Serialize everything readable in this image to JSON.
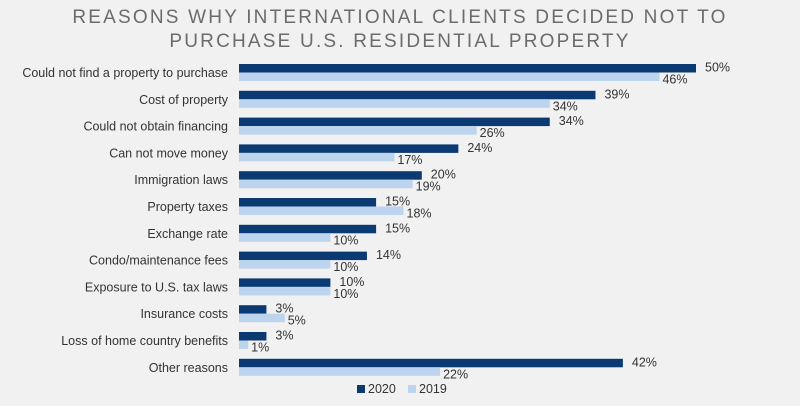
{
  "chart_data": {
    "type": "bar",
    "orientation": "horizontal",
    "title_line1": "REASONS WHY INTERNATIONAL CLIENTS DECIDED NOT TO",
    "title_line2": "PURCHASE U.S. RESIDENTIAL PROPERTY",
    "categories": [
      "Could not find a property to purchase",
      "Cost of property",
      "Could not obtain financing",
      "Can not move money",
      "Immigration laws",
      "Property taxes",
      "Exchange rate",
      "Condo/maintenance fees",
      "Exposure to U.S. tax laws",
      "Insurance costs",
      "Loss of home country benefits",
      "Other reasons"
    ],
    "series": [
      {
        "name": "2020",
        "values": [
          50,
          39,
          34,
          24,
          20,
          15,
          15,
          14,
          10,
          3,
          3,
          42
        ]
      },
      {
        "name": "2019",
        "values": [
          46,
          34,
          26,
          17,
          19,
          18,
          10,
          10,
          10,
          5,
          1,
          22
        ]
      }
    ],
    "value_suffix": "%",
    "xlim": [
      0,
      50
    ],
    "grid": false,
    "legend_position": "bottom-center",
    "colors": {
      "2020": "#0b3a73",
      "2019": "#bcd4ee"
    }
  }
}
